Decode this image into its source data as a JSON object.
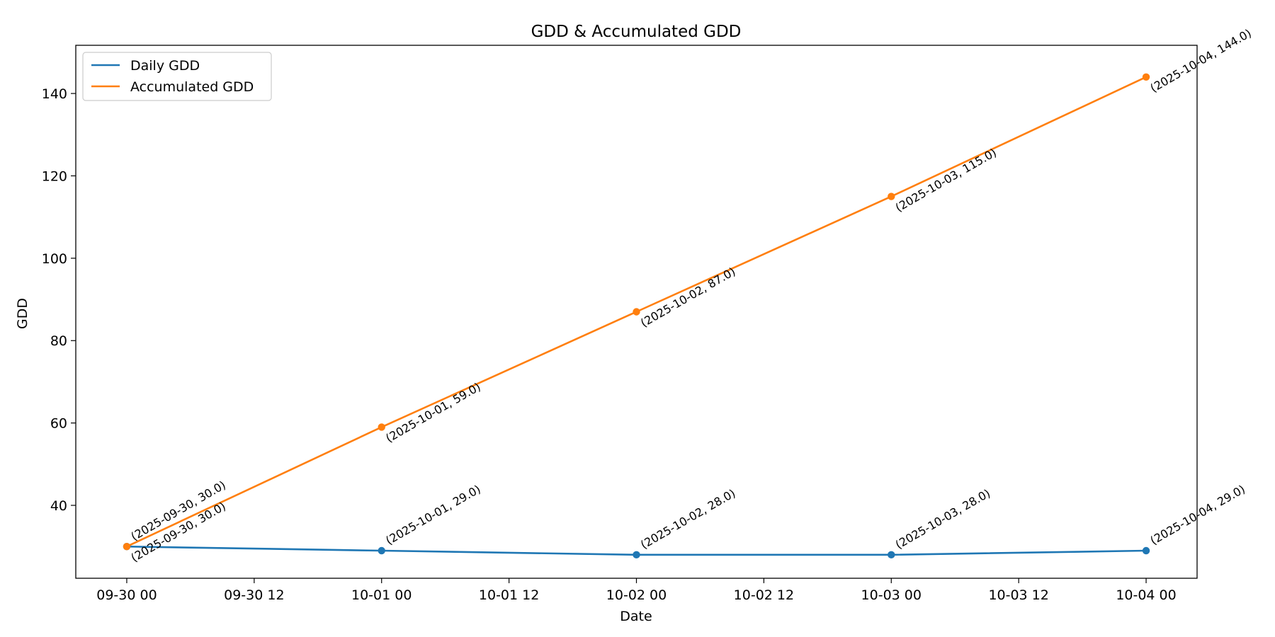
{
  "chart_data": {
    "type": "line",
    "title": "GDD & Accumulated GDD",
    "xlabel": "Date",
    "ylabel": "GDD",
    "x": [
      "2025-09-30",
      "2025-10-01",
      "2025-10-02",
      "2025-10-03",
      "2025-10-04"
    ],
    "x_ticks": [
      "09-30 00",
      "09-30 12",
      "10-01 00",
      "10-01 12",
      "10-02 00",
      "10-02 12",
      "10-03 00",
      "10-03 12",
      "10-04 00"
    ],
    "xlim": [
      "2025-09-29 19:12",
      "2025-10-04 04:48"
    ],
    "y_ticks": [
      40,
      60,
      80,
      100,
      120,
      140
    ],
    "ylim": [
      22.3,
      151.7
    ],
    "grid": false,
    "legend_position": "upper left",
    "series": [
      {
        "name": "Daily GDD",
        "color": "#1f77b4",
        "values": [
          30.0,
          29.0,
          28.0,
          28.0,
          29.0
        ],
        "labels": [
          "(2025-09-30, 30.0)",
          "(2025-10-01, 29.0)",
          "(2025-10-02, 28.0)",
          "(2025-10-03, 28.0)",
          "(2025-10-04, 29.0)"
        ]
      },
      {
        "name": "Accumulated GDD",
        "color": "#ff7f0e",
        "values": [
          30.0,
          59.0,
          87.0,
          115.0,
          144.0
        ],
        "labels": [
          "(2025-09-30, 30.0)",
          "(2025-10-01, 59.0)",
          "(2025-10-02, 87.0)",
          "(2025-10-03, 115.0)",
          "(2025-10-04, 144.0)"
        ]
      }
    ]
  }
}
